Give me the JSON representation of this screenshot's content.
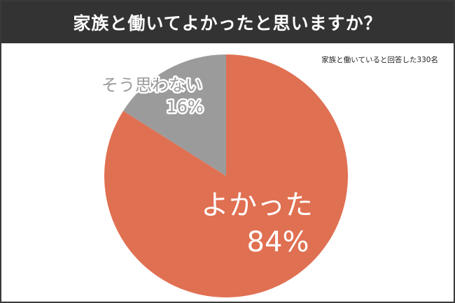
{
  "header": {
    "title": "家族と働いてよかったと思いますか？"
  },
  "note": "家族と働いていると回答した330名",
  "colors": {
    "title_bg": "#333333",
    "slice_yes": "#E07052",
    "slice_no": "#9B9B9B",
    "label_light": "#FFFFFF"
  },
  "chart_data": {
    "type": "pie",
    "title": "家族と働いてよかったと思いますか？",
    "subtitle": "家族と働いていると回答した330名",
    "slices": [
      {
        "label": "よかった",
        "value": 84,
        "value_label": "84%",
        "color": "#E07052"
      },
      {
        "label": "そう思わない",
        "value": 16,
        "value_label": "16%",
        "color": "#9B9B9B"
      }
    ],
    "unit": "%",
    "start": "top",
    "direction": "clockwise",
    "legend": "none"
  }
}
